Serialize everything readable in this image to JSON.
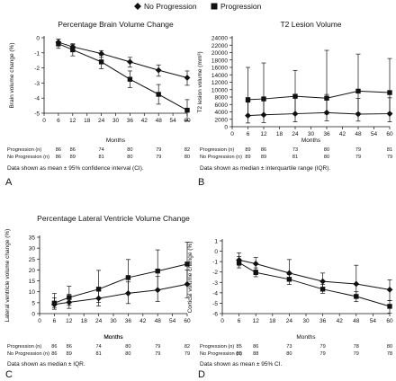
{
  "legend": [
    {
      "label": "No Progression",
      "marker": "diamond"
    },
    {
      "label": "Progression",
      "marker": "square"
    }
  ],
  "chart_data": [
    {
      "type": "line",
      "panel_letter": "A",
      "title": "Percentage Brain Volume Change",
      "xlabel": "Months",
      "ylabel": "Brain volume change (%)",
      "x": [
        6,
        12,
        24,
        36,
        48,
        60
      ],
      "xticks": [
        0,
        6,
        12,
        18,
        24,
        30,
        36,
        42,
        48,
        54,
        60
      ],
      "ylim": [
        -5,
        0
      ],
      "yticks": [
        -5,
        -4,
        -3,
        -2,
        -1,
        0
      ],
      "ytick_labels": [
        "-5",
        "-4",
        "-3",
        "-2",
        "-1",
        "0"
      ],
      "series": [
        {
          "name": "No Progression",
          "marker": "diamond",
          "values": [
            -0.3,
            -0.6,
            -1.05,
            -1.6,
            -2.15,
            -2.65
          ],
          "err_low": [
            -0.55,
            -0.85,
            -1.3,
            -1.95,
            -2.55,
            -3.15
          ],
          "err_high": [
            -0.1,
            -0.4,
            -0.85,
            -1.3,
            -1.8,
            -2.2
          ]
        },
        {
          "name": "Progression",
          "marker": "square",
          "values": [
            -0.4,
            -0.8,
            -1.6,
            -2.75,
            -3.75,
            -4.8
          ],
          "err_low": [
            -0.7,
            -1.2,
            -2.05,
            -3.3,
            -4.4,
            -5.5
          ],
          "err_high": [
            -0.1,
            -0.45,
            -1.15,
            -2.2,
            -3.1,
            -4.1
          ]
        }
      ],
      "counts_header": "",
      "counts": [
        {
          "label": "Progression (n)",
          "values": [
            "86",
            "86",
            "74",
            "80",
            "79",
            "82"
          ]
        },
        {
          "label": "No Progression (n)",
          "values": [
            "86",
            "89",
            "81",
            "80",
            "79",
            "80"
          ]
        }
      ],
      "note": "Data shown as mean ± 95% confidence interval (CI)."
    },
    {
      "type": "line",
      "panel_letter": "B",
      "title": "T2 Lesion Volume",
      "xlabel": "Months",
      "ylabel": "T2 lesion volume (mm³)",
      "x": [
        6,
        12,
        24,
        36,
        48,
        60
      ],
      "xticks": [
        0,
        6,
        12,
        18,
        24,
        30,
        36,
        42,
        48,
        54,
        60
      ],
      "ylim": [
        0,
        24000
      ],
      "yticks": [
        0,
        2000,
        4000,
        6000,
        8000,
        10000,
        12000,
        14000,
        16000,
        18000,
        20000,
        22000,
        24000
      ],
      "ytick_labels": [
        "0",
        "2000",
        "4000",
        "6000",
        "8000",
        "10000",
        "12000",
        "14000",
        "16000",
        "18000",
        "20000",
        "22000",
        "24000"
      ],
      "series": [
        {
          "name": "No Progression",
          "marker": "diamond",
          "values": [
            3000,
            3200,
            3500,
            3800,
            3400,
            3500
          ],
          "err_low": [
            1000,
            1100,
            1300,
            1600,
            1500,
            1300
          ],
          "err_high": [
            6600,
            7200,
            7700,
            8700,
            7600,
            7800
          ]
        },
        {
          "name": "Progression",
          "marker": "square",
          "values": [
            7300,
            7500,
            8200,
            7700,
            9600,
            9200
          ],
          "err_low": [
            2800,
            3000,
            3300,
            3400,
            3800,
            3800
          ],
          "err_high": [
            16000,
            17200,
            15200,
            20600,
            19600,
            18400
          ]
        }
      ],
      "counts_header": "",
      "counts": [
        {
          "label": "Progression (n)",
          "values": [
            "89",
            "86",
            "73",
            "80",
            "79",
            "81"
          ]
        },
        {
          "label": "No Progression (n)",
          "values": [
            "89",
            "89",
            "81",
            "80",
            "79",
            "79"
          ]
        }
      ],
      "note": "Data shown as median ± interquartile range (IQR)."
    },
    {
      "type": "line",
      "panel_letter": "C",
      "title": "Percentage Lateral Ventricle Volume Change",
      "xlabel": "Months",
      "ylabel": "Lateral ventricle volume change (%)",
      "x": [
        6,
        12,
        24,
        36,
        48,
        60
      ],
      "xticks": [
        0,
        6,
        12,
        18,
        24,
        30,
        36,
        42,
        48,
        54,
        60
      ],
      "ylim": [
        0,
        35
      ],
      "yticks": [
        0,
        5,
        10,
        15,
        20,
        25,
        30,
        35
      ],
      "ytick_labels": [
        "0",
        "5",
        "10",
        "15",
        "20",
        "25",
        "30",
        "35"
      ],
      "series": [
        {
          "name": "No Progression",
          "marker": "diamond",
          "values": [
            4.2,
            5.2,
            7.0,
            9.3,
            10.8,
            13.5
          ],
          "err_low": [
            2.0,
            2.4,
            3.5,
            4.6,
            5.6,
            7.3
          ],
          "err_high": [
            7.2,
            8.8,
            11.5,
            14.5,
            17.0,
            20.0
          ]
        },
        {
          "name": "Progression",
          "marker": "square",
          "values": [
            4.8,
            7.4,
            11.2,
            16.5,
            19.5,
            22.7
          ],
          "err_low": [
            2.8,
            3.8,
            5.2,
            9.0,
            10.5,
            13.2
          ],
          "err_high": [
            9.2,
            12.5,
            19.8,
            24.8,
            29.2,
            32.7
          ]
        }
      ],
      "counts_header": "Months",
      "counts": [
        {
          "label": "Progression (n)",
          "values": [
            "86",
            "86",
            "74",
            "80",
            "79",
            "82"
          ]
        },
        {
          "label": "No Progression (n)",
          "values": [
            "86",
            "89",
            "81",
            "80",
            "79",
            "79"
          ]
        }
      ],
      "note": "Data shown as median ± IQR."
    },
    {
      "type": "line",
      "panel_letter": "D",
      "title": "",
      "xlabel": "",
      "ylabel": "Cortical volume change (%)",
      "x": [
        6,
        12,
        24,
        36,
        48,
        60
      ],
      "xticks": [
        0,
        6,
        12,
        18,
        24,
        30,
        36,
        42,
        48,
        54,
        60
      ],
      "ylim": [
        -6,
        1
      ],
      "yticks": [
        -6,
        -5,
        -4,
        -3,
        -2,
        -1,
        0,
        1
      ],
      "ytick_labels": [
        "-6",
        "-5",
        "-4",
        "-3",
        "-2",
        "-1",
        "0",
        "1"
      ],
      "series": [
        {
          "name": "No Progression",
          "marker": "diamond",
          "values": [
            -0.85,
            -1.2,
            -2.1,
            -2.9,
            -3.15,
            -3.7
          ],
          "err_low": [
            -1.4,
            -1.8,
            -2.85,
            -3.7,
            -4.25,
            -4.75
          ],
          "err_high": [
            -0.15,
            -0.6,
            -0.8,
            -2.1,
            -1.35,
            -2.75
          ]
        },
        {
          "name": "Progression",
          "marker": "square",
          "values": [
            -1.1,
            -2.05,
            -2.7,
            -3.65,
            -4.35,
            -5.3
          ],
          "err_low": [
            -1.6,
            -2.45,
            -3.2,
            -4.05,
            -4.85,
            -5.95
          ],
          "err_high": [
            -0.5,
            -1.6,
            -2.25,
            -3.2,
            -3.9,
            -4.75
          ]
        }
      ],
      "counts_header": "Months",
      "counts": [
        {
          "label": "Progression (n)",
          "values": [
            "85",
            "86",
            "73",
            "79",
            "78",
            "80"
          ]
        },
        {
          "label": "No Progression (n)",
          "values": [
            "85",
            "88",
            "80",
            "79",
            "79",
            "78"
          ]
        }
      ],
      "note": "Data shown as mean ± 95% CI."
    }
  ]
}
